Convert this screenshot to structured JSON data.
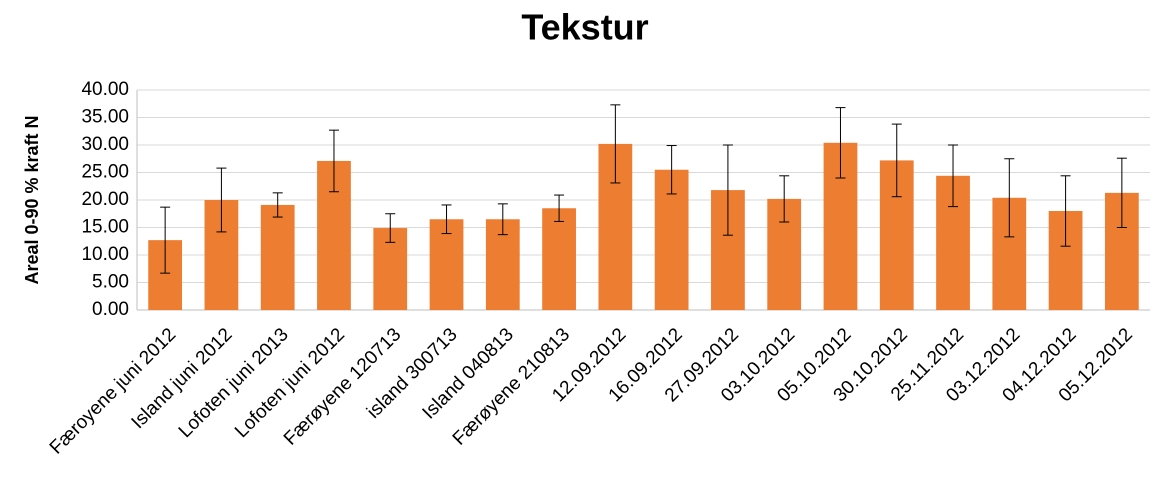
{
  "chart_data": {
    "type": "bar",
    "title": "Tekstur",
    "ylabel": "Areal 0-90 % kraft N",
    "categories": [
      "Færoyene juni 2012",
      "Island juni 2012",
      "Lofoten juni 2013",
      "Lofoten juni 2012",
      "Færøyene 120713",
      "island 300713",
      "Island 040813",
      "Færøyene 210813",
      "12.09.2012",
      "16.09.2012",
      "27.09.2012",
      "03.10.2012",
      "05.10.2012",
      "30.10.2012",
      "25.11.2012",
      "03.12.2012",
      "04.12.2012",
      "05.12.2012"
    ],
    "values": [
      12.7,
      20.0,
      19.1,
      27.1,
      14.9,
      16.5,
      16.5,
      18.5,
      30.2,
      25.5,
      21.8,
      20.2,
      30.4,
      27.2,
      24.4,
      20.4,
      18.0,
      21.3
    ],
    "errors": [
      6.0,
      5.8,
      2.2,
      5.6,
      2.6,
      2.6,
      2.8,
      2.4,
      7.1,
      4.4,
      8.2,
      4.2,
      6.4,
      6.6,
      5.6,
      7.1,
      6.4,
      6.3
    ],
    "color": "#ED7D31",
    "ylim": [
      0,
      40
    ],
    "yticks": [
      {
        "value": 0,
        "label": "0.00"
      },
      {
        "value": 5,
        "label": "5.00"
      },
      {
        "value": 10,
        "label": "10.00"
      },
      {
        "value": 15,
        "label": "15.00"
      },
      {
        "value": 20,
        "label": "20.00"
      },
      {
        "value": 25,
        "label": "25.00"
      },
      {
        "value": 30,
        "label": "30.00"
      },
      {
        "value": 35,
        "label": "35.00"
      },
      {
        "value": 40,
        "label": "40.00"
      }
    ],
    "grid": true
  }
}
